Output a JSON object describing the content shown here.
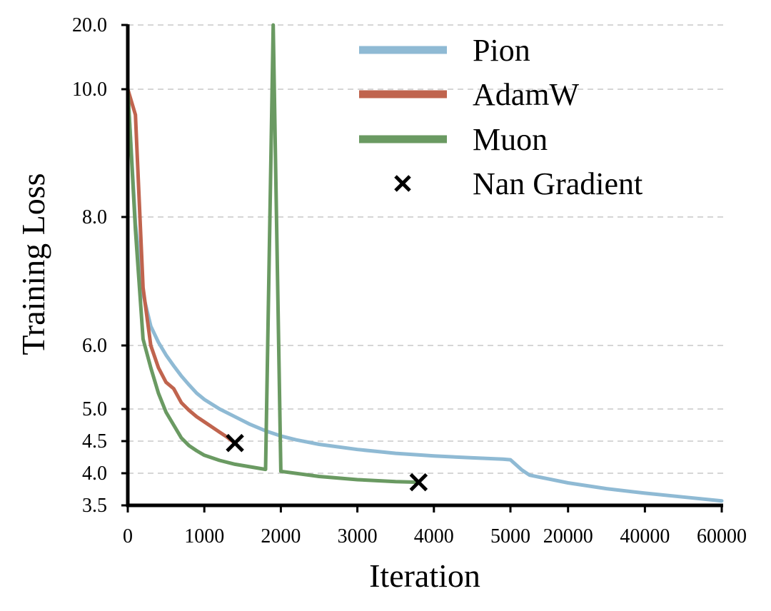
{
  "chart_data": {
    "type": "line",
    "title": "",
    "xlabel": "Iteration",
    "ylabel": "Training Loss",
    "x_tick_labels": [
      "0",
      "1000",
      "2000",
      "3000",
      "4000",
      "5000",
      "20000",
      "40000",
      "60000"
    ],
    "y_tick_labels": [
      "3.5",
      "4.0",
      "4.5",
      "5.0",
      "6.0",
      "8.0",
      "10.0",
      "20.0"
    ],
    "x_axis_segments": [
      {
        "from": 0,
        "to": 5000,
        "scale": "linear"
      },
      {
        "from": 5000,
        "to": 60000,
        "scale": "linear"
      }
    ],
    "y_ticks": [
      3.5,
      4.0,
      4.5,
      5.0,
      6.0,
      8.0,
      10.0,
      20.0
    ],
    "grid": {
      "y": true,
      "x": false
    },
    "legend_position": "top-right",
    "series": [
      {
        "name": "Pion",
        "color": "#8fbad4",
        "points": [
          [
            0,
            10.0
          ],
          [
            100,
            7.9
          ],
          [
            200,
            6.8
          ],
          [
            300,
            6.3
          ],
          [
            400,
            6.05
          ],
          [
            500,
            5.85
          ],
          [
            600,
            5.68
          ],
          [
            700,
            5.52
          ],
          [
            800,
            5.38
          ],
          [
            900,
            5.25
          ],
          [
            1000,
            5.15
          ],
          [
            1200,
            5.0
          ],
          [
            1400,
            4.88
          ],
          [
            1600,
            4.76
          ],
          [
            1800,
            4.66
          ],
          [
            2000,
            4.58
          ],
          [
            2200,
            4.52
          ],
          [
            2500,
            4.45
          ],
          [
            3000,
            4.37
          ],
          [
            3500,
            4.31
          ],
          [
            4000,
            4.27
          ],
          [
            4500,
            4.24
          ],
          [
            4900,
            4.22
          ],
          [
            5000,
            4.21
          ],
          [
            8000,
            4.05
          ],
          [
            10000,
            3.97
          ],
          [
            20000,
            3.85
          ],
          [
            30000,
            3.76
          ],
          [
            40000,
            3.69
          ],
          [
            50000,
            3.63
          ],
          [
            60000,
            3.57
          ]
        ]
      },
      {
        "name": "AdamW",
        "color": "#c0644e",
        "points": [
          [
            0,
            10.0
          ],
          [
            100,
            9.6
          ],
          [
            200,
            6.9
          ],
          [
            300,
            6.0
          ],
          [
            400,
            5.65
          ],
          [
            500,
            5.42
          ],
          [
            600,
            5.32
          ],
          [
            700,
            5.1
          ],
          [
            800,
            4.98
          ],
          [
            900,
            4.88
          ],
          [
            1000,
            4.8
          ],
          [
            1100,
            4.72
          ],
          [
            1200,
            4.64
          ],
          [
            1300,
            4.56
          ],
          [
            1400,
            4.47
          ]
        ]
      },
      {
        "name": "Muon",
        "color": "#6a9a62",
        "points": [
          [
            0,
            10.0
          ],
          [
            100,
            7.8
          ],
          [
            200,
            6.1
          ],
          [
            300,
            5.65
          ],
          [
            400,
            5.25
          ],
          [
            500,
            4.95
          ],
          [
            600,
            4.75
          ],
          [
            700,
            4.55
          ],
          [
            800,
            4.43
          ],
          [
            900,
            4.35
          ],
          [
            1000,
            4.28
          ],
          [
            1200,
            4.2
          ],
          [
            1400,
            4.14
          ],
          [
            1600,
            4.1
          ],
          [
            1800,
            4.06
          ],
          [
            1900,
            20.0
          ],
          [
            2000,
            4.03
          ],
          [
            2500,
            3.95
          ],
          [
            3000,
            3.9
          ],
          [
            3500,
            3.87
          ],
          [
            3800,
            3.86
          ]
        ]
      }
    ],
    "markers": [
      {
        "name": "Nan Gradient",
        "symbol": "x",
        "color": "#000000",
        "points": [
          [
            1400,
            4.47
          ],
          [
            3800,
            3.86
          ]
        ]
      }
    ],
    "legend_entries": [
      "Pion",
      "AdamW",
      "Muon",
      "Nan Gradient"
    ]
  }
}
